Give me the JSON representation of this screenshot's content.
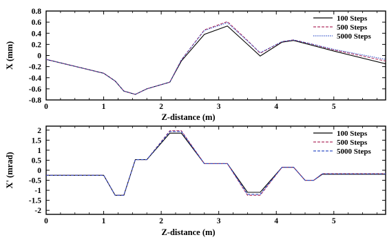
{
  "chart_data": [
    {
      "type": "line",
      "title": "",
      "xlabel": "Z-distance (m)",
      "ylabel": "X (mm)",
      "xlim": [
        0,
        5.9
      ],
      "ylim": [
        -0.8,
        0.8
      ],
      "xticks": [
        0,
        1,
        2,
        3,
        4,
        5
      ],
      "xtick_labels": [
        "0",
        "1",
        "2",
        "3",
        "4",
        "5"
      ],
      "yticks": [
        -0.8,
        -0.6,
        -0.4,
        -0.2,
        0,
        0.2,
        0.4,
        0.6,
        0.8
      ],
      "ytick_labels": [
        "-0.8",
        "-0.6",
        "-0.4",
        "-0.2",
        "0",
        "0.2",
        "0.4",
        "0.6",
        "0.8"
      ],
      "legend_position": "top-right",
      "series": [
        {
          "name": "100 Steps",
          "color": "#000000",
          "dash": "solid",
          "x": [
            0,
            1.0,
            1.2,
            1.35,
            1.55,
            1.75,
            2.15,
            2.35,
            2.75,
            3.15,
            3.5,
            3.72,
            4.1,
            4.3,
            4.6,
            5.0,
            5.9
          ],
          "y": [
            -0.07,
            -0.32,
            -0.46,
            -0.64,
            -0.7,
            -0.6,
            -0.48,
            -0.1,
            0.38,
            0.53,
            0.2,
            -0.01,
            0.24,
            0.27,
            0.19,
            0.08,
            -0.15
          ]
        },
        {
          "name": "500 Steps",
          "color": "#b03060",
          "dash": "dashed",
          "x": [
            0,
            1.0,
            1.2,
            1.35,
            1.55,
            1.75,
            2.15,
            2.35,
            2.75,
            3.15,
            3.5,
            3.72,
            4.1,
            4.3,
            4.6,
            5.0,
            5.9
          ],
          "y": [
            -0.07,
            -0.32,
            -0.46,
            -0.64,
            -0.7,
            -0.6,
            -0.48,
            -0.08,
            0.46,
            0.61,
            0.27,
            0.04,
            0.25,
            0.28,
            0.21,
            0.1,
            -0.1
          ]
        },
        {
          "name": "5000 Steps",
          "color": "#3050c8",
          "dash": "dotted",
          "x": [
            0,
            1.0,
            1.2,
            1.35,
            1.55,
            1.75,
            2.15,
            2.35,
            2.75,
            3.15,
            3.5,
            3.72,
            4.1,
            4.3,
            4.6,
            5.0,
            5.9
          ],
          "y": [
            -0.07,
            -0.32,
            -0.46,
            -0.64,
            -0.7,
            -0.6,
            -0.48,
            -0.08,
            0.45,
            0.59,
            0.26,
            0.05,
            0.25,
            0.28,
            0.21,
            0.11,
            -0.07
          ]
        }
      ]
    },
    {
      "type": "line",
      "title": "",
      "xlabel": "Z-distance (m)",
      "ylabel": "X' (mrad)",
      "xlim": [
        0,
        5.9
      ],
      "ylim": [
        -2.2,
        2.2
      ],
      "xticks": [
        0,
        1,
        2,
        3,
        4,
        5
      ],
      "xtick_labels": [
        "0",
        "1",
        "2",
        "3",
        "4",
        "5"
      ],
      "yticks": [
        -2,
        -1.5,
        -1,
        -0.5,
        0,
        0.5,
        1,
        1.5,
        2
      ],
      "ytick_labels": [
        "-2",
        "-1.5",
        "-1",
        "-0.5",
        "0",
        "0.5",
        "1",
        "1.5",
        "2"
      ],
      "legend_position": "top-right",
      "series": [
        {
          "name": "100 Steps",
          "color": "#000000",
          "dash": "solid",
          "x": [
            0,
            1.0,
            1.2,
            1.35,
            1.55,
            1.75,
            2.15,
            2.35,
            2.75,
            3.15,
            3.5,
            3.72,
            4.1,
            4.3,
            4.5,
            4.65,
            4.8,
            5.9
          ],
          "y": [
            -0.25,
            -0.25,
            -1.25,
            -1.25,
            0.53,
            0.53,
            1.85,
            1.85,
            0.33,
            0.33,
            -1.1,
            -1.1,
            0.15,
            0.15,
            -0.5,
            -0.5,
            -0.2,
            -0.2
          ]
        },
        {
          "name": "500 Steps",
          "color": "#b03060",
          "dash": "dashed",
          "x": [
            0,
            1.0,
            1.2,
            1.35,
            1.55,
            1.75,
            2.15,
            2.35,
            2.75,
            3.15,
            3.5,
            3.72,
            4.1,
            4.3,
            4.5,
            4.65,
            4.8,
            5.9
          ],
          "y": [
            -0.25,
            -0.25,
            -1.25,
            -1.25,
            0.53,
            0.53,
            1.97,
            1.97,
            0.33,
            0.33,
            -1.25,
            -1.25,
            0.15,
            0.15,
            -0.5,
            -0.5,
            -0.17,
            -0.17
          ]
        },
        {
          "name": "5000 Steps",
          "color": "#3050c8",
          "dash": "dashed",
          "x": [
            0,
            1.0,
            1.2,
            1.35,
            1.55,
            1.75,
            2.15,
            2.35,
            2.75,
            3.15,
            3.5,
            3.72,
            4.1,
            4.3,
            4.5,
            4.65,
            4.8,
            5.9
          ],
          "y": [
            -0.25,
            -0.25,
            -1.25,
            -1.25,
            0.53,
            0.53,
            1.93,
            1.93,
            0.33,
            0.33,
            -1.2,
            -1.2,
            0.15,
            0.15,
            -0.5,
            -0.5,
            -0.18,
            -0.18
          ]
        }
      ]
    }
  ]
}
